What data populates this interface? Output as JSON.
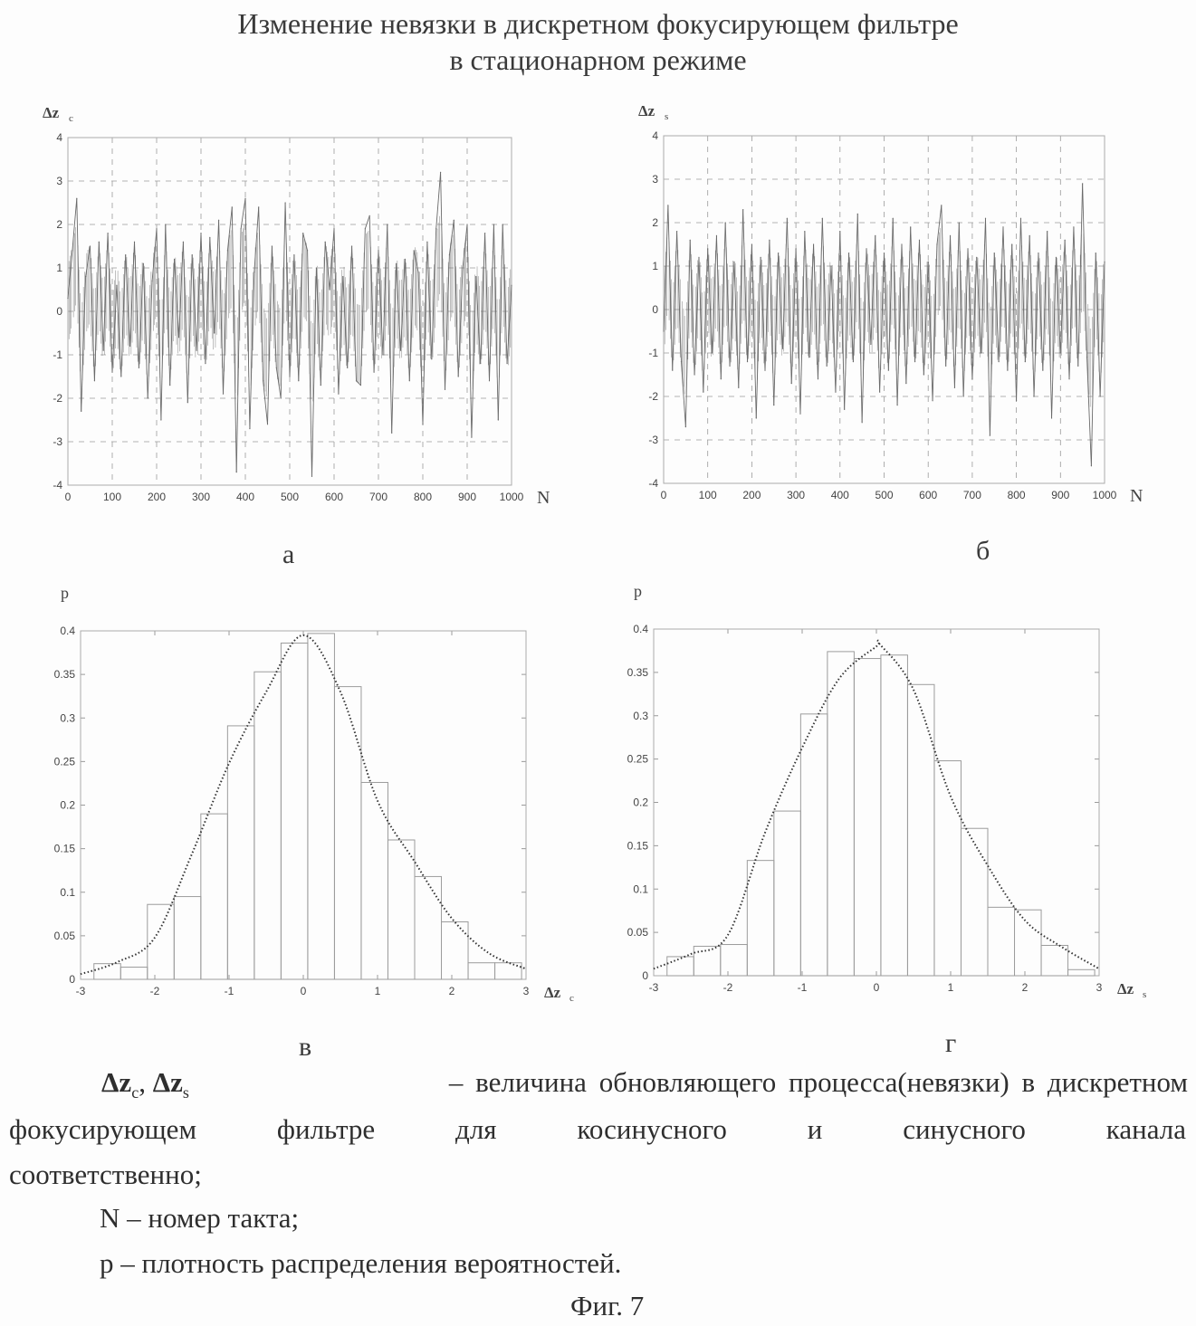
{
  "title_line1": "Изменение невязки в дискретном фокусирующем фильтре",
  "title_line2": "в стационарном режиме",
  "panel_letters": [
    "а",
    "б",
    "в",
    "г"
  ],
  "caption": {
    "sym1": "Δz",
    "sub1": "c",
    "sep": ", ",
    "sym2": "Δz",
    "sub2": "s",
    "line1_rest": "– величина обновляющего процесса(невязки) в дискретном",
    "line2_words": [
      "фокусирующем",
      "фильтре",
      "для",
      "косинусного",
      "и",
      "синусного",
      "канала"
    ],
    "line3": "соответственно;",
    "line4": "N – номер такта;",
    "line5": "p – плотность распределения вероятностей.",
    "fig": "Фиг. 7"
  },
  "colors": {
    "ink": "#555555",
    "grid": "#9a9a9a",
    "trace": "#6a6a6a"
  },
  "chart_data": [
    {
      "type": "line",
      "panel": "а",
      "ylabel": "Δz",
      "ylabel_sub": "c",
      "xlabel": "N",
      "xlim": [
        0,
        1000
      ],
      "ylim": [
        -4,
        4
      ],
      "xticks": [
        "0",
        "100",
        "200",
        "300",
        "400",
        "500",
        "600",
        "700",
        "800",
        "900",
        "1000"
      ],
      "yticks": [
        "4",
        "3",
        "2",
        "1",
        "0",
        "-1",
        "-2",
        "-3",
        "-4"
      ],
      "grid": true,
      "values": [
        0.3,
        1.4,
        2.6,
        -2.3,
        0.8,
        1.5,
        -1.6,
        1.6,
        -0.9,
        1.8,
        -1.4,
        0.6,
        -1.5,
        1.3,
        -0.8,
        1.6,
        -1.3,
        1.1,
        -2.0,
        0.7,
        1.9,
        -2.5,
        2.0,
        -1.7,
        1.2,
        -0.6,
        1.6,
        -2.1,
        1.3,
        -0.9,
        1.8,
        -1.2,
        1.7,
        -0.5,
        2.1,
        -1.9,
        1.4,
        2.4,
        -3.7,
        1.9,
        2.6,
        -2.7,
        0.9,
        2.4,
        -1.6,
        -2.6,
        1.5,
        -1.3,
        -2.0,
        2.5,
        -1.5,
        1.3,
        -1.6,
        1.8,
        1.4,
        -3.8,
        1.0,
        -1.7,
        1.6,
        0.5,
        1.9,
        -1.9,
        0.8,
        -1.3,
        1.5,
        -1.6,
        -1.7,
        1.9,
        2.2,
        -1.4,
        1.4,
        -1.0,
        2.0,
        -2.8,
        1.1,
        -0.9,
        1.2,
        -1.6,
        1.4,
        0.9,
        -2.6,
        1.6,
        -1.1,
        1.9,
        3.2,
        -1.8,
        1.3,
        2.1,
        -1.5,
        1.0,
        2.0,
        -2.9,
        0.8,
        -1.2,
        1.8,
        -1.6,
        2.0,
        -2.5,
        2.0,
        -1.2,
        0.6
      ]
    },
    {
      "type": "line",
      "panel": "б",
      "ylabel": "Δz",
      "ylabel_sub": "s",
      "xlabel": "N",
      "xlim": [
        0,
        1000
      ],
      "ylim": [
        -4,
        4
      ],
      "xticks": [
        "0",
        "100",
        "200",
        "300",
        "400",
        "500",
        "600",
        "700",
        "800",
        "900",
        "1000"
      ],
      "yticks": [
        "4",
        "3",
        "2",
        "1",
        "0",
        "-1",
        "-2",
        "-3",
        "-4"
      ],
      "grid": true,
      "values": [
        -0.5,
        2.4,
        -1.4,
        1.8,
        -1.2,
        -2.7,
        1.6,
        -1.5,
        1.2,
        -1.9,
        1.4,
        -1.0,
        1.7,
        -1.6,
        2.0,
        -1.3,
        1.1,
        -1.8,
        2.3,
        -1.2,
        1.5,
        -2.5,
        1.2,
        -1.4,
        1.6,
        -2.2,
        1.3,
        -0.9,
        2.1,
        -1.7,
        1.4,
        -2.4,
        1.8,
        -1.1,
        1.5,
        -1.6,
        2.1,
        -1.3,
        1.0,
        -1.9,
        1.8,
        -2.3,
        1.3,
        -1.2,
        2.2,
        -2.6,
        1.4,
        -0.8,
        1.7,
        -1.9,
        1.3,
        -1.4,
        2.1,
        -2.2,
        1.5,
        -1.7,
        1.9,
        -1.2,
        1.6,
        -1.5,
        1.1,
        -2.1,
        1.5,
        2.4,
        -1.3,
        1.7,
        -1.8,
        2.0,
        -2.0,
        1.4,
        -1.6,
        1.2,
        -1.0,
        2.1,
        -2.9,
        1.3,
        -1.2,
        1.9,
        -1.4,
        1.5,
        -2.1,
        2.1,
        -1.2,
        1.7,
        -2.0,
        1.3,
        -1.4,
        1.8,
        -2.5,
        1.2,
        -1.0,
        1.6,
        -1.6,
        1.9,
        -1.3,
        2.9,
        -1.1,
        -3.6,
        1.3,
        -2.0,
        1.1
      ]
    },
    {
      "type": "bar",
      "panel": "в",
      "ylabel": "p",
      "xlabel": "Δz",
      "xlabel_sub": "c",
      "xlim": [
        -3,
        3
      ],
      "ylim": [
        0,
        0.4
      ],
      "xticks": [
        "-3",
        "-2",
        "-1",
        "0",
        "1",
        "2",
        "3"
      ],
      "yticks": [
        "0.4",
        "0.35",
        "0.3",
        "0.25",
        "0.2",
        "0.15",
        "0.1",
        "0.05",
        "0"
      ],
      "grid": false,
      "bin_edges": [
        -2.82,
        -2.46,
        -2.1,
        -1.74,
        -1.38,
        -1.02,
        -0.66,
        -0.3,
        0.06,
        0.42,
        0.78,
        1.14,
        1.5,
        1.86,
        2.22,
        2.58,
        2.94
      ],
      "values": [
        0.018,
        0.014,
        0.086,
        0.095,
        0.19,
        0.291,
        0.353,
        0.386,
        0.397,
        0.336,
        0.226,
        0.16,
        0.118,
        0.066,
        0.019,
        0.019
      ],
      "curve": {
        "x": [
          -3,
          -2.5,
          -2,
          -1.5,
          -1,
          -0.5,
          0,
          0.5,
          1,
          1.5,
          2,
          2.5,
          3
        ],
        "y": [
          0.006,
          0.02,
          0.048,
          0.144,
          0.248,
          0.33,
          0.395,
          0.33,
          0.205,
          0.135,
          0.07,
          0.03,
          0.012
        ]
      }
    },
    {
      "type": "bar",
      "panel": "г",
      "ylabel": "p",
      "xlabel": "Δz",
      "xlabel_sub": "s",
      "xlim": [
        -3,
        3
      ],
      "ylim": [
        0,
        0.4
      ],
      "xticks": [
        "-3",
        "-2",
        "-1",
        "0",
        "1",
        "2",
        "3"
      ],
      "yticks": [
        "0.4",
        "0.35",
        "0.3",
        "0.25",
        "0.2",
        "0.15",
        "0.1",
        "0.05",
        "0"
      ],
      "grid": false,
      "bin_edges": [
        -2.82,
        -2.46,
        -2.1,
        -1.74,
        -1.38,
        -1.02,
        -0.66,
        -0.3,
        0.06,
        0.42,
        0.78,
        1.14,
        1.5,
        1.86,
        2.22,
        2.58,
        2.94
      ],
      "values": [
        0.022,
        0.034,
        0.036,
        0.133,
        0.19,
        0.302,
        0.374,
        0.366,
        0.37,
        0.336,
        0.248,
        0.17,
        0.079,
        0.076,
        0.035,
        0.007
      ],
      "curve": {
        "x": [
          -3,
          -2.5,
          -2,
          -1.5,
          -1,
          -0.5,
          0,
          0.05,
          0.5,
          1,
          1.5,
          2,
          2.5,
          3
        ],
        "y": [
          0.008,
          0.025,
          0.047,
          0.165,
          0.263,
          0.343,
          0.38,
          0.382,
          0.33,
          0.207,
          0.127,
          0.064,
          0.033,
          0.008
        ]
      }
    }
  ]
}
